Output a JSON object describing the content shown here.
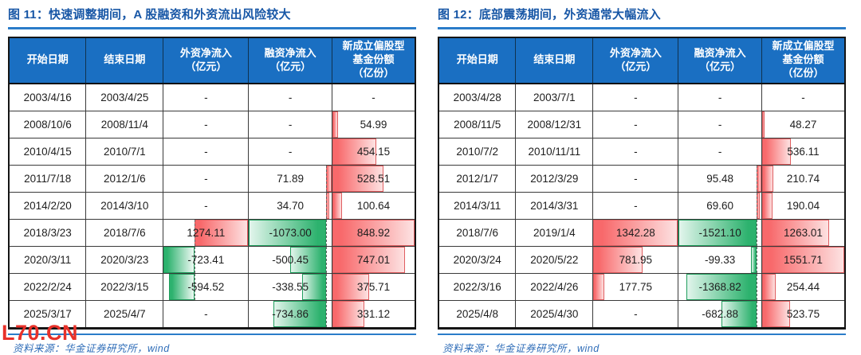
{
  "colors": {
    "header_bg": "#1a6fc2",
    "title": "#1857a6",
    "rule": "#2a7cc9",
    "footer": "#2f6db8",
    "bar_red": "#f8696b",
    "bar_green": "#2db26e",
    "watermark": "#e8312a"
  },
  "watermark": "L70.CN",
  "panels": [
    {
      "title": "图 11：快速调整期间，A 股融资和外资流出风险较大",
      "source": "资料来源：华金证券研究所，wind",
      "columns": [
        "开始日期",
        "结束日期",
        "外资净流入\n（亿元）",
        "融资净流入\n（亿元）",
        "新成立偏股型\n基金份额\n（亿份）"
      ],
      "rows": [
        [
          "2003/4/16",
          "2003/4/25",
          "-",
          "-",
          "-"
        ],
        [
          "2008/10/6",
          "2008/11/4",
          "-",
          "-",
          "54.99"
        ],
        [
          "2010/4/15",
          "2010/7/1",
          "-",
          "-",
          "454.15"
        ],
        [
          "2011/7/18",
          "2012/1/6",
          "-",
          "71.89",
          "528.51"
        ],
        [
          "2014/2/20",
          "2014/3/10",
          "-",
          "34.70",
          "100.64"
        ],
        [
          "2018/3/23",
          "2018/7/6",
          "1274.11",
          "-1073.00",
          "848.92"
        ],
        [
          "2020/3/11",
          "2020/3/23",
          "-723.41",
          "-500.45",
          "747.01"
        ],
        [
          "2022/2/24",
          "2022/3/15",
          "-594.52",
          "-338.55",
          "375.71"
        ],
        [
          "2025/3/17",
          "2025/4/7",
          "-",
          "-734.86",
          "331.12"
        ]
      ]
    },
    {
      "title": "图 12：底部震荡期间，外资通常大幅流入",
      "source": "资料来源：华金证券研究所，wind",
      "columns": [
        "开始日期",
        "结束日期",
        "外资净流入\n（亿元）",
        "融资净流入\n（亿元）",
        "新成立偏股型\n基金份额\n（亿份）"
      ],
      "rows": [
        [
          "2003/4/28",
          "2003/7/1",
          "-",
          "-",
          "-"
        ],
        [
          "2008/11/5",
          "2008/12/31",
          "-",
          "-",
          "48.27"
        ],
        [
          "2010/7/2",
          "2010/11/11",
          "-",
          "-",
          "536.11"
        ],
        [
          "2012/1/7",
          "2012/3/29",
          "-",
          "95.48",
          "210.74"
        ],
        [
          "2014/3/11",
          "2014/3/31",
          "-",
          "69.60",
          "190.04"
        ],
        [
          "2018/7/6",
          "2019/1/4",
          "1342.28",
          "-1521.10",
          "1263.01"
        ],
        [
          "2020/3/24",
          "2020/5/22",
          "781.95",
          "-99.33",
          "1551.71"
        ],
        [
          "2022/3/16",
          "2022/4/26",
          "177.75",
          "-1368.82",
          "254.44"
        ],
        [
          "2025/4/8",
          "2025/4/30",
          "-",
          "-682.88",
          "523.75"
        ]
      ]
    }
  ]
}
